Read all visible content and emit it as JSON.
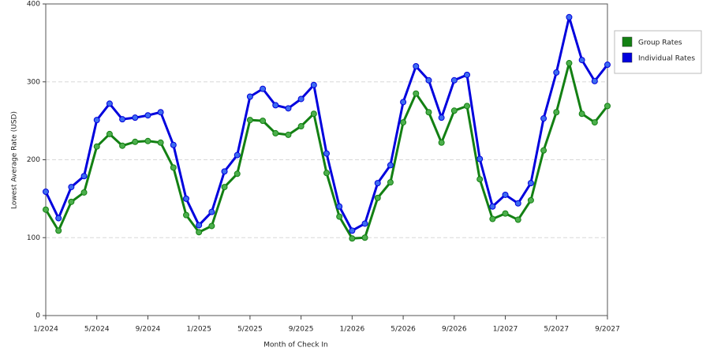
{
  "chart_data": {
    "type": "line",
    "x_label": "Month of Check In",
    "y_label": "Lowest Average Rate (USD)",
    "categories": [
      "1/2024",
      null,
      null,
      null,
      "5/2024",
      null,
      null,
      null,
      "9/2024",
      null,
      null,
      null,
      "1/2025",
      null,
      null,
      null,
      "5/2025",
      null,
      null,
      null,
      "9/2025",
      null,
      null,
      null,
      "1/2026",
      null,
      null,
      null,
      "5/2026",
      null,
      null,
      null,
      "9/2026",
      null,
      null,
      null,
      "1/2027",
      null,
      null,
      null,
      "5/2027",
      null,
      null,
      null,
      "9/2027"
    ],
    "series": [
      {
        "name": "Group Rates",
        "color": "#138013",
        "marker_color": "#4caf4c",
        "values": [
          136,
          109,
          146,
          158,
          217,
          233,
          218,
          223,
          224,
          222,
          190,
          129,
          107,
          115,
          165,
          182,
          251,
          250,
          234,
          232,
          243,
          259,
          183,
          127,
          99,
          100,
          151,
          171,
          248,
          285,
          261,
          222,
          263,
          269,
          175,
          124,
          131,
          123,
          148,
          212,
          261,
          324,
          259,
          248,
          269
        ]
      },
      {
        "name": "Individual Rates",
        "color": "#0000dd",
        "marker_color": "#3d6cf0",
        "values": [
          159,
          125,
          165,
          179,
          251,
          272,
          252,
          254,
          257,
          261,
          219,
          150,
          116,
          133,
          185,
          206,
          281,
          291,
          270,
          266,
          278,
          296,
          208,
          140,
          109,
          118,
          170,
          193,
          274,
          320,
          302,
          254,
          302,
          309,
          201,
          140,
          155,
          144,
          170,
          253,
          312,
          383,
          328,
          301,
          322
        ]
      }
    ],
    "ylim": [
      0,
      400
    ],
    "yticks": [
      0,
      100,
      200,
      300,
      400
    ],
    "grid": true,
    "legend": "right"
  }
}
